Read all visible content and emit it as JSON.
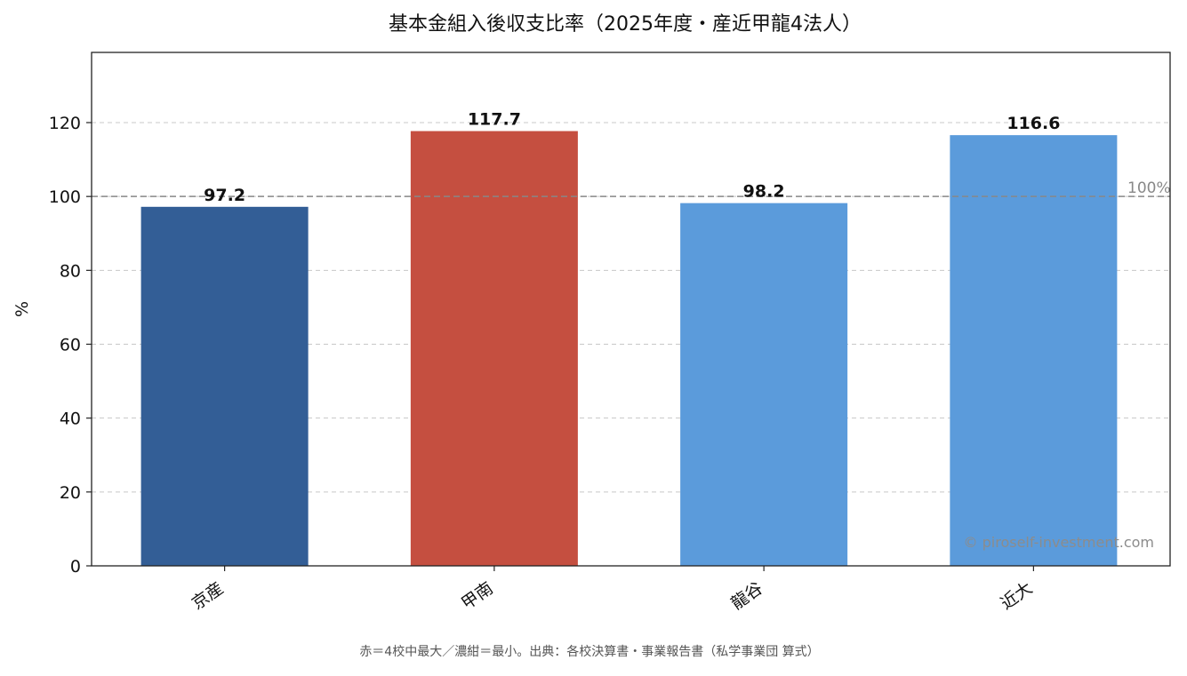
{
  "chart_data": {
    "type": "bar",
    "title": "基本金組入後収支比率（2025年度・産近甲龍4法人）",
    "xlabel": "",
    "ylabel": "%",
    "categories": [
      "京産",
      "甲南",
      "龍谷",
      "近大"
    ],
    "values": [
      97.2,
      117.7,
      98.2,
      116.6
    ],
    "value_labels": [
      "97.2",
      "117.7",
      "98.2",
      "116.6"
    ],
    "bar_colors": [
      "#335E96",
      "#C54F40",
      "#5B9BDB",
      "#5B9BDB"
    ],
    "ylim": [
      0,
      139
    ],
    "yticks": [
      0,
      20,
      40,
      60,
      80,
      100,
      120
    ],
    "grid": true,
    "reference_line": {
      "value": 100,
      "label": "100%",
      "color": "#888888"
    },
    "watermark": "© piroself-investment.com",
    "footnote": "赤＝4校中最大／濃紺＝最小。出典：各校決算書・事業報告書（私学事業団 算式）"
  }
}
